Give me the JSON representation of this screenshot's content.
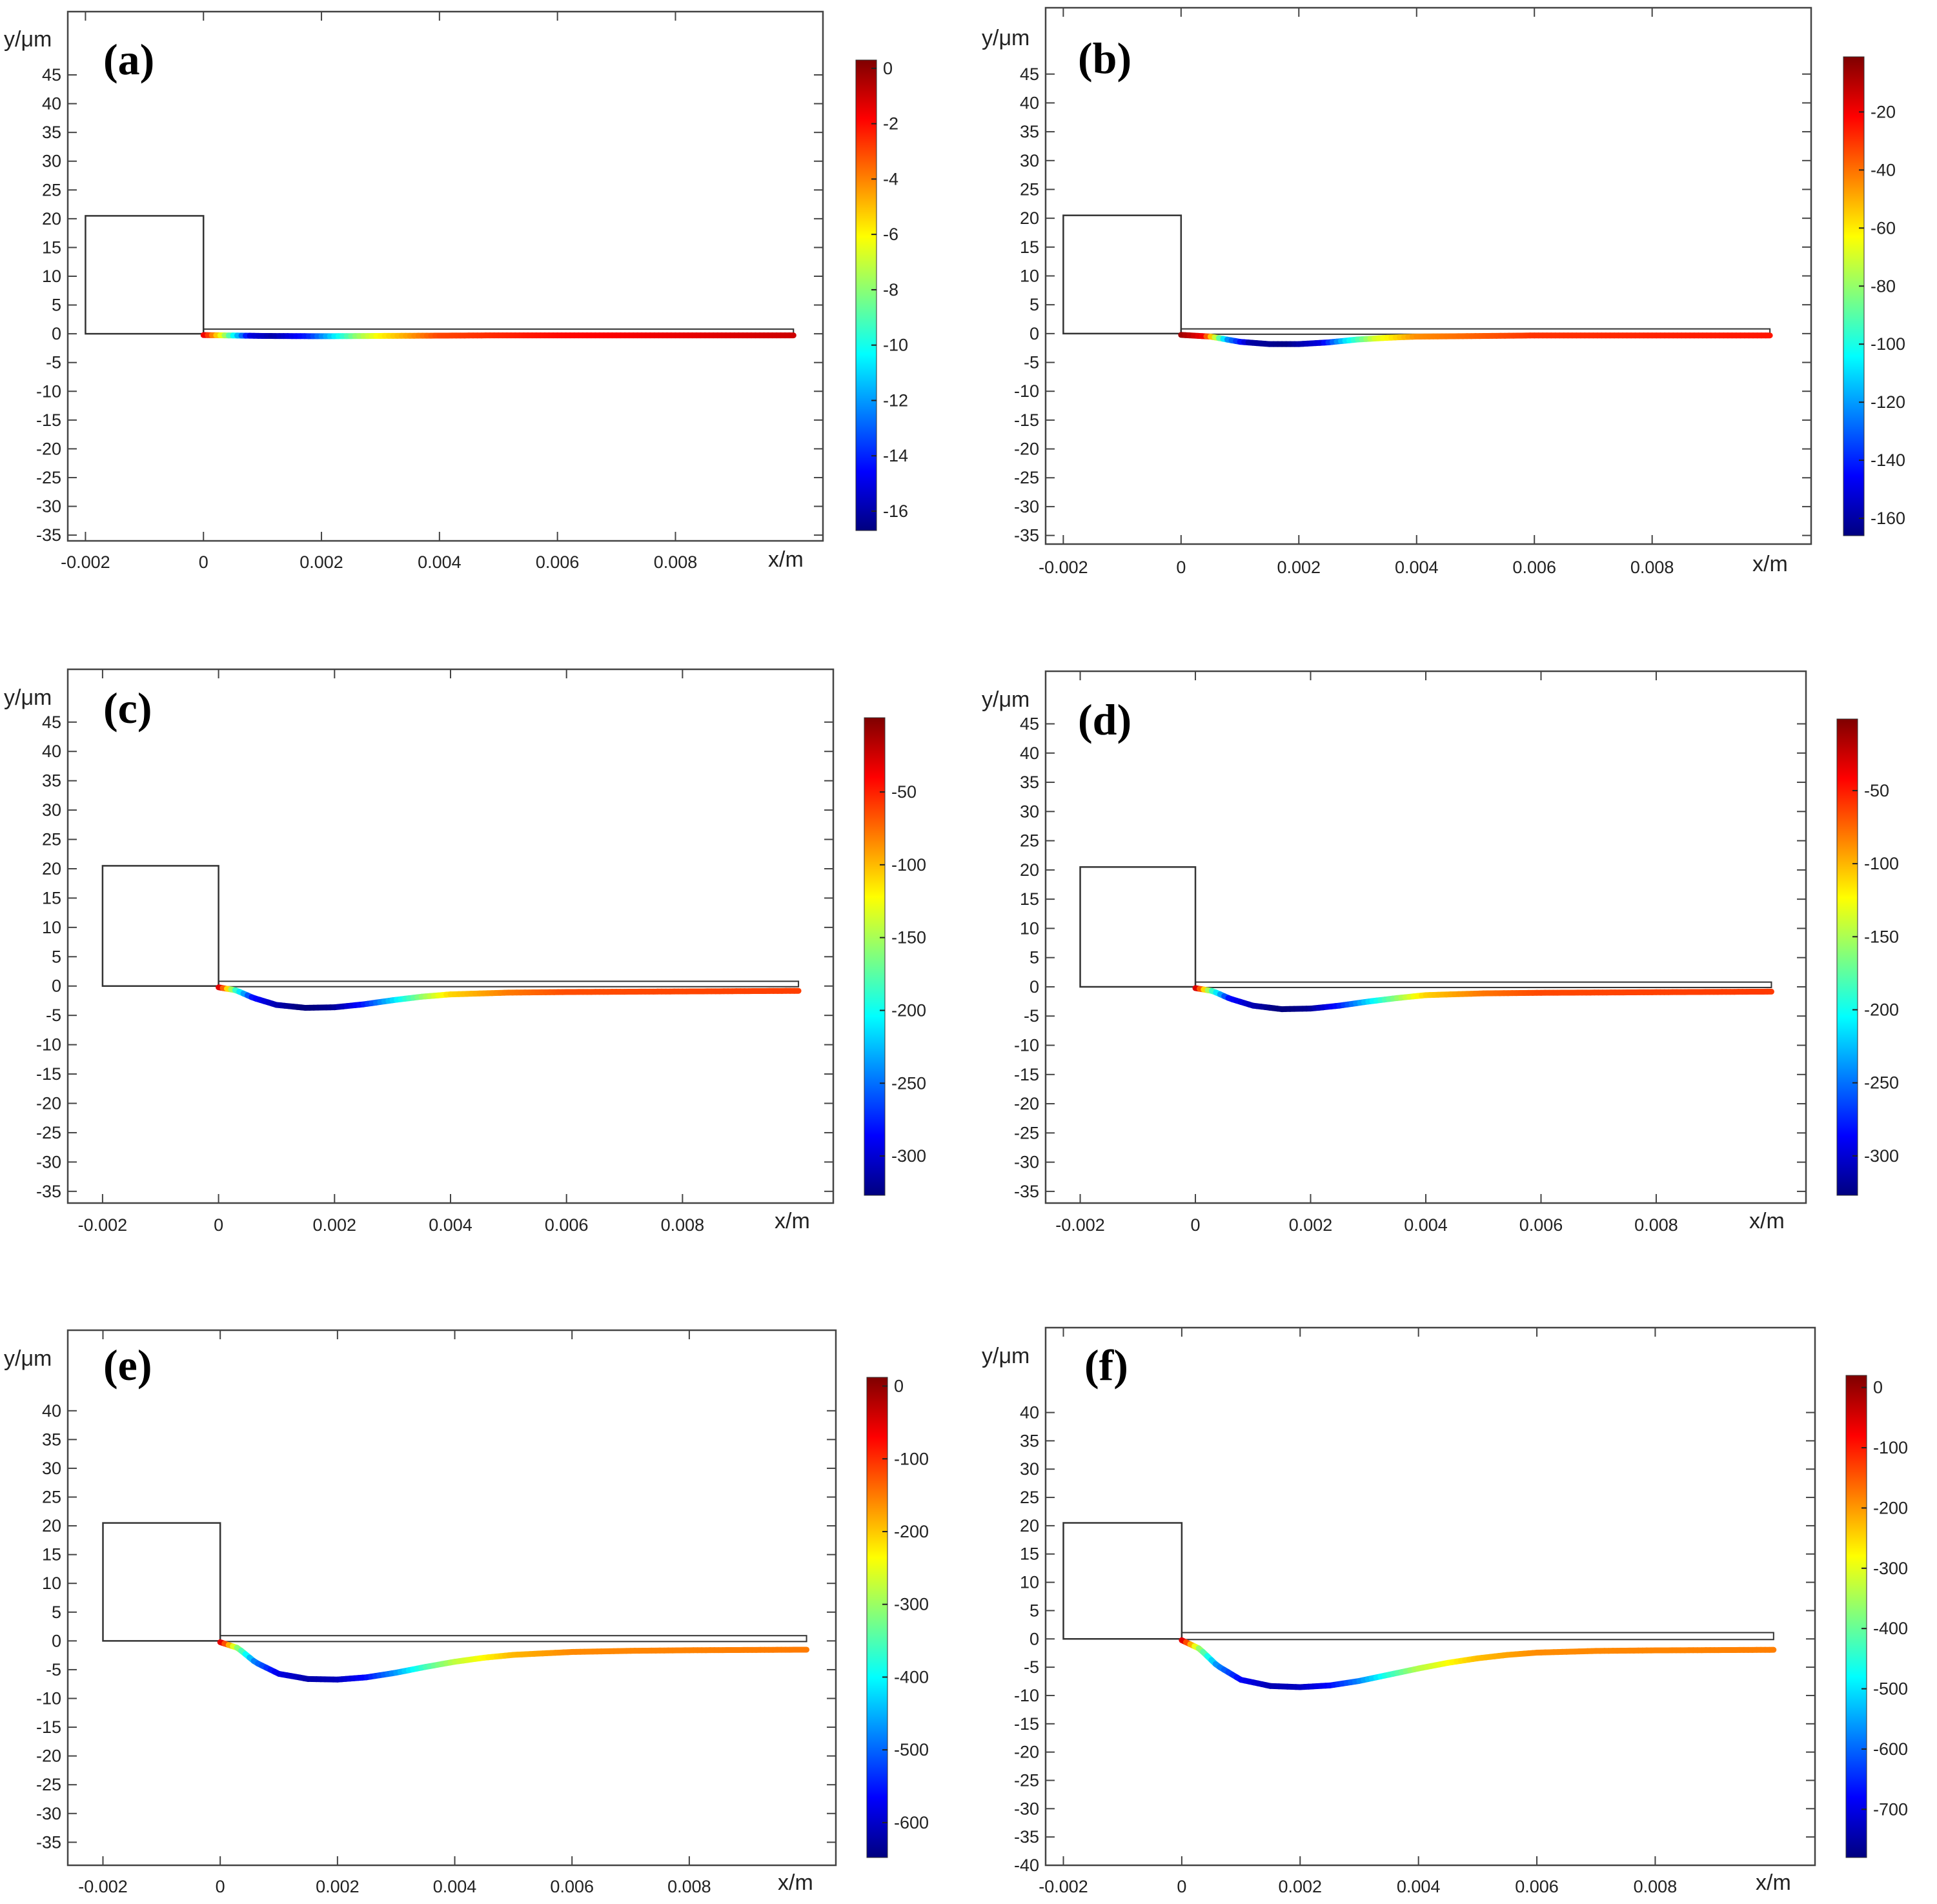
{
  "figure": {
    "xlabel": "x/m",
    "ylabel": "y/μm",
    "colormap": [
      "#00007f",
      "#0000ff",
      "#007fff",
      "#00ffff",
      "#7fff7f",
      "#ffff00",
      "#ff7f00",
      "#ff0000",
      "#7f0000"
    ]
  },
  "chart_data": [
    {
      "type": "line",
      "label": "(a)",
      "x_ticks": [
        "-0.002",
        "0",
        "0.002",
        "0.004",
        "0.006",
        "0.008"
      ],
      "x_tick_values": [
        -0.002,
        0,
        0.002,
        0.004,
        0.006,
        0.008
      ],
      "xlim": [
        -0.0023,
        0.0105
      ],
      "y_ticks": [
        "45",
        "40",
        "35",
        "30",
        "25",
        "20",
        "15",
        "10",
        "5",
        "0",
        "-5",
        "-10",
        "-15",
        "-20",
        "-25",
        "-30",
        "-35"
      ],
      "y_tick_values": [
        45,
        40,
        35,
        30,
        25,
        20,
        15,
        10,
        5,
        0,
        -5,
        -10,
        -15,
        -20,
        -25,
        -30,
        -35
      ],
      "ylim": [
        -36,
        56
      ],
      "block": {
        "x": [
          -0.002,
          0
        ],
        "y": [
          0,
          20.5
        ]
      },
      "beam_outline": {
        "x": [
          0,
          0.01
        ],
        "y": [
          0,
          0.7
        ]
      },
      "deflection": {
        "x": [
          0,
          0.001,
          0.002,
          0.003,
          0.004,
          0.005,
          0.006,
          0.007,
          0.008,
          0.009,
          0.01
        ],
        "y": [
          0,
          -0.15,
          -0.2,
          -0.15,
          -0.1,
          -0.05,
          -0.05,
          -0.05,
          -0.05,
          -0.05,
          -0.05
        ]
      },
      "field": {
        "x": [
          0,
          0.0003,
          0.0008,
          0.0012,
          0.0018,
          0.0022,
          0.0026,
          0.003,
          0.004,
          0.006,
          0.01
        ],
        "v": [
          -1,
          -6,
          -15,
          -16,
          -14,
          -11,
          -8,
          -6,
          -3,
          -2,
          -1
        ]
      },
      "colorbar": {
        "ticks": [
          "0",
          "-2",
          "-4",
          "-6",
          "-8",
          "-10",
          "-12",
          "-14",
          "-16"
        ],
        "tick_values": [
          0,
          -2,
          -4,
          -6,
          -8,
          -10,
          -12,
          -14,
          -16
        ],
        "range": [
          -16.7,
          0.3
        ]
      }
    },
    {
      "type": "line",
      "label": "(b)",
      "x_ticks": [
        "-0.002",
        "0",
        "0.002",
        "0.004",
        "0.006",
        "0.008"
      ],
      "x_tick_values": [
        -0.002,
        0,
        0.002,
        0.004,
        0.006,
        0.008
      ],
      "xlim": [
        -0.0023,
        0.0107
      ],
      "y_ticks": [
        "45",
        "40",
        "35",
        "30",
        "25",
        "20",
        "15",
        "10",
        "5",
        "0",
        "-5",
        "-10",
        "-15",
        "-20",
        "-25",
        "-30",
        "-35"
      ],
      "y_tick_values": [
        45,
        40,
        35,
        30,
        25,
        20,
        15,
        10,
        5,
        0,
        -5,
        -10,
        -15,
        -20,
        -25,
        -30,
        -35
      ],
      "ylim": [
        -36.5,
        56.5
      ],
      "block": {
        "x": [
          -0.002,
          0
        ],
        "y": [
          0,
          20.5
        ]
      },
      "beam_outline": {
        "x": [
          0,
          0.01
        ],
        "y": [
          0,
          0.7
        ]
      },
      "deflection": {
        "x": [
          0,
          0.0005,
          0.001,
          0.0015,
          0.002,
          0.0025,
          0.003,
          0.0035,
          0.004,
          0.005,
          0.006,
          0.008,
          0.01
        ],
        "y": [
          0,
          -0.3,
          -1.2,
          -1.6,
          -1.6,
          -1.3,
          -0.8,
          -0.5,
          -0.3,
          -0.2,
          -0.1,
          -0.1,
          -0.1
        ]
      },
      "field": {
        "x": [
          0,
          0.0004,
          0.0008,
          0.0012,
          0.0018,
          0.0024,
          0.0028,
          0.0033,
          0.004,
          0.006,
          0.01
        ],
        "v": [
          -5,
          -20,
          -120,
          -160,
          -165,
          -150,
          -110,
          -70,
          -45,
          -30,
          -25
        ]
      },
      "colorbar": {
        "ticks": [
          "-20",
          "-40",
          "-60",
          "-80",
          "-100",
          "-120",
          "-140",
          "-160"
        ],
        "tick_values": [
          -20,
          -40,
          -60,
          -80,
          -100,
          -120,
          -140,
          -160
        ],
        "range": [
          -166,
          -1
        ]
      }
    },
    {
      "type": "line",
      "label": "(c)",
      "x_ticks": [
        "-0.002",
        "0",
        "0.002",
        "0.004",
        "0.006",
        "0.008"
      ],
      "x_tick_values": [
        -0.002,
        0,
        0.002,
        0.004,
        0.006,
        0.008
      ],
      "xlim": [
        -0.0026,
        0.0106
      ],
      "y_ticks": [
        "45",
        "40",
        "35",
        "30",
        "25",
        "20",
        "15",
        "10",
        "5",
        "0",
        "-5",
        "-10",
        "-15",
        "-20",
        "-25",
        "-30",
        "-35"
      ],
      "y_tick_values": [
        45,
        40,
        35,
        30,
        25,
        20,
        15,
        10,
        5,
        0,
        -5,
        -10,
        -15,
        -20,
        -25,
        -30,
        -35
      ],
      "ylim": [
        -37,
        54
      ],
      "block": {
        "x": [
          -0.002,
          0
        ],
        "y": [
          0,
          20.5
        ]
      },
      "beam_outline": {
        "x": [
          0,
          0.01
        ],
        "y": [
          0,
          0.7
        ]
      },
      "deflection": {
        "x": [
          0,
          0.0003,
          0.0006,
          0.001,
          0.0015,
          0.002,
          0.0025,
          0.003,
          0.0035,
          0.004,
          0.005,
          0.006,
          0.008,
          0.01
        ],
        "y": [
          0,
          -0.5,
          -1.8,
          -3.0,
          -3.5,
          -3.4,
          -2.9,
          -2.2,
          -1.6,
          -1.2,
          -0.9,
          -0.8,
          -0.7,
          -0.6
        ]
      },
      "field": {
        "x": [
          0,
          0.0003,
          0.0006,
          0.001,
          0.0015,
          0.002,
          0.0025,
          0.003,
          0.0035,
          0.004,
          0.005,
          0.006,
          0.01
        ],
        "v": [
          -10,
          -180,
          -280,
          -310,
          -330,
          -320,
          -280,
          -220,
          -160,
          -110,
          -80,
          -65,
          -60
        ]
      },
      "colorbar": {
        "ticks": [
          "-50",
          "-100",
          "-150",
          "-200",
          "-250",
          "-300"
        ],
        "tick_values": [
          -50,
          -100,
          -150,
          -200,
          -250,
          -300
        ],
        "range": [
          -327,
          1
        ]
      }
    },
    {
      "type": "line",
      "label": "(d)",
      "x_ticks": [
        "-0.002",
        "0",
        "0.002",
        "0.004",
        "0.006",
        "0.008"
      ],
      "x_tick_values": [
        -0.002,
        0,
        0.002,
        0.004,
        0.006,
        0.008
      ],
      "xlim": [
        -0.0026,
        0.0106
      ],
      "y_ticks": [
        "45",
        "40",
        "35",
        "30",
        "25",
        "20",
        "15",
        "10",
        "5",
        "0",
        "-5",
        "-10",
        "-15",
        "-20",
        "-25",
        "-30",
        "-35"
      ],
      "y_tick_values": [
        45,
        40,
        35,
        30,
        25,
        20,
        15,
        10,
        5,
        0,
        -5,
        -10,
        -15,
        -20,
        -25,
        -30,
        -35
      ],
      "ylim": [
        -37,
        54
      ],
      "block": {
        "x": [
          -0.002,
          0
        ],
        "y": [
          0,
          20.5
        ]
      },
      "beam_outline": {
        "x": [
          0,
          0.01
        ],
        "y": [
          0,
          0.7
        ]
      },
      "deflection": {
        "x": [
          0,
          0.0003,
          0.0006,
          0.001,
          0.0015,
          0.002,
          0.0025,
          0.003,
          0.0035,
          0.004,
          0.005,
          0.006,
          0.008,
          0.01
        ],
        "y": [
          0,
          -0.5,
          -1.8,
          -3.0,
          -3.6,
          -3.5,
          -3.0,
          -2.3,
          -1.7,
          -1.2,
          -0.9,
          -0.8,
          -0.7,
          -0.6
        ]
      },
      "field": {
        "x": [
          0,
          0.0003,
          0.0006,
          0.001,
          0.0015,
          0.002,
          0.0025,
          0.003,
          0.0035,
          0.004,
          0.005,
          0.006,
          0.01
        ],
        "v": [
          -10,
          -180,
          -280,
          -310,
          -330,
          -320,
          -280,
          -220,
          -160,
          -110,
          -80,
          -65,
          -60
        ]
      },
      "colorbar": {
        "ticks": [
          "-50",
          "-100",
          "-150",
          "-200",
          "-250",
          "-300"
        ],
        "tick_values": [
          -50,
          -100,
          -150,
          -200,
          -250,
          -300
        ],
        "range": [
          -327,
          -1
        ]
      }
    },
    {
      "type": "line",
      "label": "(e)",
      "x_ticks": [
        "-0.002",
        "0",
        "0.002",
        "0.004",
        "0.006",
        "0.008"
      ],
      "x_tick_values": [
        -0.002,
        0,
        0.002,
        0.004,
        0.006,
        0.008
      ],
      "xlim": [
        -0.0026,
        0.0105
      ],
      "y_ticks": [
        "40",
        "35",
        "30",
        "25",
        "20",
        "15",
        "10",
        "5",
        "0",
        "-5",
        "-10",
        "-15",
        "-20",
        "-25",
        "-30",
        "-35"
      ],
      "y_tick_values": [
        40,
        35,
        30,
        25,
        20,
        15,
        10,
        5,
        0,
        -5,
        -10,
        -15,
        -20,
        -25,
        -30,
        -35
      ],
      "ylim": [
        -39,
        54
      ],
      "block": {
        "x": [
          -0.002,
          0
        ],
        "y": [
          0,
          20.5
        ]
      },
      "beam_outline": {
        "x": [
          0,
          0.01
        ],
        "y": [
          0,
          0.8
        ]
      },
      "deflection": {
        "x": [
          0,
          0.0003,
          0.0006,
          0.001,
          0.0015,
          0.002,
          0.0025,
          0.003,
          0.0035,
          0.004,
          0.0045,
          0.005,
          0.006,
          0.007,
          0.008,
          0.01
        ],
        "y": [
          0,
          -1.0,
          -3.5,
          -5.5,
          -6.4,
          -6.5,
          -6.1,
          -5.3,
          -4.3,
          -3.4,
          -2.7,
          -2.2,
          -1.7,
          -1.5,
          -1.4,
          -1.3
        ]
      },
      "field": {
        "x": [
          0,
          0.0003,
          0.0006,
          0.001,
          0.0015,
          0.002,
          0.0025,
          0.003,
          0.0035,
          0.004,
          0.005,
          0.006,
          0.01
        ],
        "v": [
          -20,
          -300,
          -480,
          -580,
          -620,
          -610,
          -560,
          -470,
          -360,
          -280,
          -190,
          -160,
          -150
        ]
      },
      "colorbar": {
        "ticks": [
          "0",
          "-100",
          "-200",
          "-300",
          "-400",
          "-500",
          "-600"
        ],
        "tick_values": [
          0,
          -100,
          -200,
          -300,
          -400,
          -500,
          -600
        ],
        "range": [
          -648,
          12
        ]
      }
    },
    {
      "type": "line",
      "label": "(f)",
      "x_ticks": [
        "-0.002",
        "0",
        "0.002",
        "0.004",
        "0.006",
        "0.008"
      ],
      "x_tick_values": [
        -0.002,
        0,
        0.002,
        0.004,
        0.006,
        0.008
      ],
      "xlim": [
        -0.0023,
        0.0107
      ],
      "y_ticks": [
        "40",
        "35",
        "30",
        "25",
        "20",
        "15",
        "10",
        "5",
        "0",
        "-5",
        "-10",
        "-15",
        "-20",
        "-25",
        "-30",
        "-35",
        "-40"
      ],
      "y_tick_values": [
        40,
        35,
        30,
        25,
        20,
        15,
        10,
        5,
        0,
        -5,
        -10,
        -15,
        -20,
        -25,
        -30,
        -35,
        -40
      ],
      "ylim": [
        -40,
        55
      ],
      "block": {
        "x": [
          -0.002,
          0
        ],
        "y": [
          0,
          20.5
        ]
      },
      "beam_outline": {
        "x": [
          0,
          0.01
        ],
        "y": [
          0,
          1
        ]
      },
      "deflection": {
        "x": [
          0,
          0.0003,
          0.0006,
          0.001,
          0.0015,
          0.002,
          0.0025,
          0.003,
          0.0035,
          0.004,
          0.0045,
          0.005,
          0.0055,
          0.006,
          0.007,
          0.008,
          0.01
        ],
        "y": [
          0,
          -1.5,
          -4.5,
          -7.0,
          -8.1,
          -8.3,
          -8.0,
          -7.2,
          -6.1,
          -5.0,
          -4.0,
          -3.2,
          -2.6,
          -2.2,
          -1.9,
          -1.8,
          -1.7
        ]
      },
      "field": {
        "x": [
          0,
          0.0003,
          0.0006,
          0.001,
          0.0015,
          0.002,
          0.0025,
          0.003,
          0.0035,
          0.004,
          0.005,
          0.006,
          0.01
        ],
        "v": [
          -20,
          -350,
          -560,
          -680,
          -740,
          -730,
          -680,
          -580,
          -450,
          -340,
          -230,
          -190,
          -180
        ]
      },
      "colorbar": {
        "ticks": [
          "0",
          "-100",
          "-200",
          "-300",
          "-400",
          "-500",
          "-600",
          "-700"
        ],
        "tick_values": [
          0,
          -100,
          -200,
          -300,
          -400,
          -500,
          -600,
          -700
        ],
        "range": [
          -780,
          20
        ]
      }
    }
  ]
}
